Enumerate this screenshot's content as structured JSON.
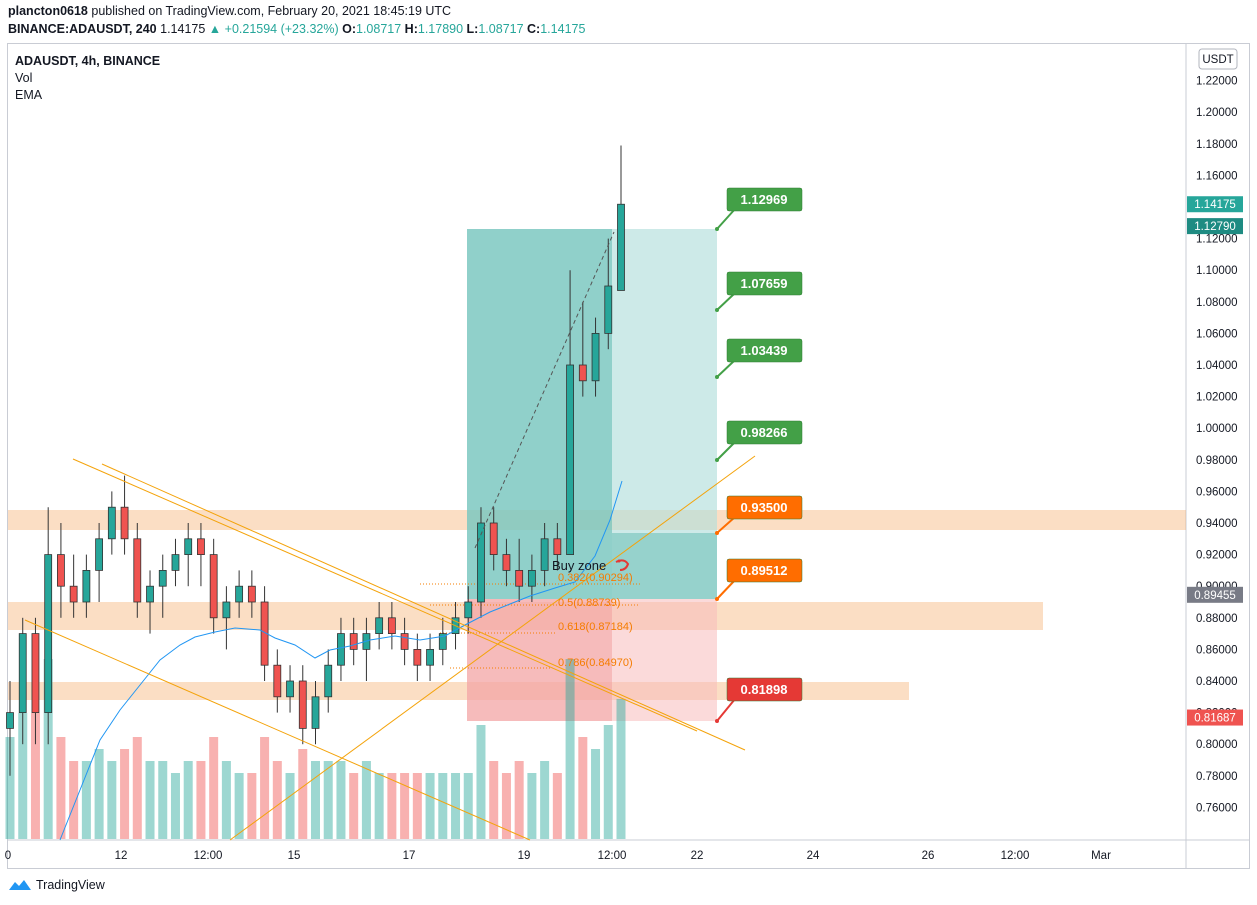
{
  "header": {
    "publisher": "plancton0618",
    "published_text": "published on TradingView.com, February 20, 2021 18:45:19 UTC",
    "symbol_line": "BINANCE:ADAUSDT, 240",
    "last_price": "1.14175",
    "change": "▲ +0.21594 (+23.32%)",
    "o_label": "O:",
    "o": "1.08717",
    "h_label": "H:",
    "h": "1.17890",
    "l_label": "L:",
    "l": "1.08717",
    "c_label": "C:",
    "c": "1.14175"
  },
  "legend": {
    "title": "ADAUSDT, 4h, BINANCE",
    "vol": "Vol",
    "ema": "EMA"
  },
  "axis": {
    "currency_button": "USDT",
    "price_ticks": [
      "1.22000",
      "1.20000",
      "1.18000",
      "1.16000",
      "1.14000",
      "1.12000",
      "1.10000",
      "1.08000",
      "1.06000",
      "1.04000",
      "1.02000",
      "1.00000",
      "0.98000",
      "0.96000",
      "0.94000",
      "0.92000",
      "0.90000",
      "0.88000",
      "0.86000",
      "0.84000",
      "0.82000",
      "0.80000",
      "0.78000",
      "0.76000"
    ],
    "price_tags": [
      {
        "label": "1.14175",
        "color": "#26a69a"
      },
      {
        "label": "1.12790",
        "color": "#1e8b82"
      },
      {
        "label": "0.89455",
        "color": "#787b86"
      },
      {
        "label": "0.81687",
        "color": "#ef5350"
      }
    ],
    "time_ticks": [
      "0",
      "12",
      "12:00",
      "15",
      "17",
      "19",
      "12:00",
      "22",
      "24",
      "26",
      "12:00",
      "Mar"
    ]
  },
  "annotations": {
    "targets": [
      {
        "label": "1.12969",
        "color": "#43a047"
      },
      {
        "label": "1.07659",
        "color": "#43a047"
      },
      {
        "label": "1.03439",
        "color": "#43a047"
      },
      {
        "label": "0.98266",
        "color": "#43a047"
      },
      {
        "label": "0.93500",
        "color": "#ff6d00"
      },
      {
        "label": "0.89512",
        "color": "#ff6d00"
      },
      {
        "label": "0.81898",
        "color": "#e53935"
      }
    ],
    "buy_zone": "Buy zone",
    "fib": [
      "0.382(0.90294)",
      "0.5(0.88739)",
      "0.618(0.87184)",
      "0.786(0.84970)"
    ]
  },
  "chart_data": {
    "type": "candlestick",
    "title": "ADAUSDT, 4h, BINANCE",
    "ylim": [
      0.74,
      1.24
    ],
    "price_candles": [
      [
        0.81,
        0.84,
        0.78,
        0.82
      ],
      [
        0.82,
        0.88,
        0.8,
        0.87
      ],
      [
        0.87,
        0.88,
        0.8,
        0.82
      ],
      [
        0.82,
        0.95,
        0.8,
        0.92
      ],
      [
        0.92,
        0.94,
        0.88,
        0.9
      ],
      [
        0.9,
        0.92,
        0.88,
        0.89
      ],
      [
        0.89,
        0.92,
        0.88,
        0.91
      ],
      [
        0.91,
        0.94,
        0.89,
        0.93
      ],
      [
        0.93,
        0.96,
        0.92,
        0.95
      ],
      [
        0.95,
        0.97,
        0.92,
        0.93
      ],
      [
        0.93,
        0.94,
        0.88,
        0.89
      ],
      [
        0.89,
        0.91,
        0.87,
        0.9
      ],
      [
        0.9,
        0.92,
        0.88,
        0.91
      ],
      [
        0.91,
        0.93,
        0.9,
        0.92
      ],
      [
        0.92,
        0.94,
        0.9,
        0.93
      ],
      [
        0.93,
        0.94,
        0.9,
        0.92
      ],
      [
        0.92,
        0.93,
        0.87,
        0.88
      ],
      [
        0.88,
        0.9,
        0.86,
        0.89
      ],
      [
        0.89,
        0.91,
        0.88,
        0.9
      ],
      [
        0.9,
        0.91,
        0.88,
        0.89
      ],
      [
        0.89,
        0.9,
        0.84,
        0.85
      ],
      [
        0.85,
        0.86,
        0.82,
        0.83
      ],
      [
        0.83,
        0.85,
        0.82,
        0.84
      ],
      [
        0.84,
        0.85,
        0.8,
        0.81
      ],
      [
        0.81,
        0.84,
        0.8,
        0.83
      ],
      [
        0.83,
        0.86,
        0.82,
        0.85
      ],
      [
        0.85,
        0.88,
        0.84,
        0.87
      ],
      [
        0.87,
        0.88,
        0.85,
        0.86
      ],
      [
        0.86,
        0.88,
        0.84,
        0.87
      ],
      [
        0.87,
        0.89,
        0.86,
        0.88
      ],
      [
        0.88,
        0.89,
        0.86,
        0.87
      ],
      [
        0.87,
        0.88,
        0.85,
        0.86
      ],
      [
        0.86,
        0.87,
        0.84,
        0.85
      ],
      [
        0.85,
        0.87,
        0.84,
        0.86
      ],
      [
        0.86,
        0.88,
        0.85,
        0.87
      ],
      [
        0.87,
        0.89,
        0.86,
        0.88
      ],
      [
        0.88,
        0.9,
        0.87,
        0.89
      ],
      [
        0.89,
        0.95,
        0.88,
        0.94
      ],
      [
        0.94,
        0.95,
        0.91,
        0.92
      ],
      [
        0.92,
        0.93,
        0.9,
        0.91
      ],
      [
        0.91,
        0.93,
        0.89,
        0.9
      ],
      [
        0.9,
        0.92,
        0.89,
        0.91
      ],
      [
        0.91,
        0.94,
        0.9,
        0.93
      ],
      [
        0.93,
        0.94,
        0.91,
        0.92
      ],
      [
        0.92,
        1.1,
        0.92,
        1.04
      ],
      [
        1.04,
        1.08,
        1.02,
        1.03
      ],
      [
        1.03,
        1.07,
        1.02,
        1.06
      ],
      [
        1.06,
        1.12,
        1.05,
        1.09
      ],
      [
        1.08717,
        1.1789,
        1.08717,
        1.14175
      ]
    ]
  }
}
